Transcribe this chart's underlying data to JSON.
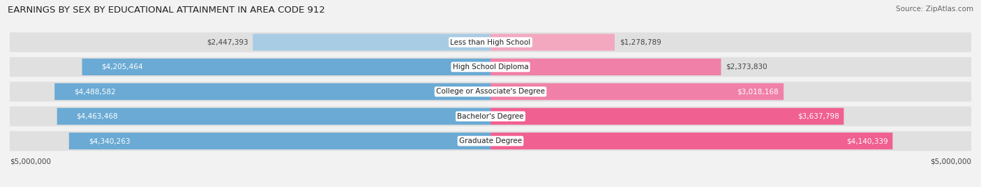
{
  "title": "EARNINGS BY SEX BY EDUCATIONAL ATTAINMENT IN AREA CODE 912",
  "source": "Source: ZipAtlas.com",
  "categories": [
    "Less than High School",
    "High School Diploma",
    "College or Associate's Degree",
    "Bachelor's Degree",
    "Graduate Degree"
  ],
  "male_values": [
    2447393,
    4205464,
    4488582,
    4463468,
    4340263
  ],
  "female_values": [
    1278789,
    2373830,
    3018168,
    3637798,
    4140339
  ],
  "male_labels": [
    "$2,447,393",
    "$4,205,464",
    "$4,488,582",
    "$4,463,468",
    "$4,340,263"
  ],
  "female_labels": [
    "$1,278,789",
    "$2,373,830",
    "$3,018,168",
    "$3,637,798",
    "$4,140,339"
  ],
  "male_color_dark": "#6aaad4",
  "male_color_light": "#a8cce4",
  "female_color_dark": "#f06090",
  "female_color_mid": "#f080a8",
  "female_color_light": "#f4a8c0",
  "background_color": "#f2f2f2",
  "row_bg_color": "#e0e0e0",
  "max_value": 5000000,
  "xlim_label_left": "$5,000,000",
  "xlim_label_right": "$5,000,000",
  "title_fontsize": 9.5,
  "source_fontsize": 7.5,
  "label_fontsize": 7.5,
  "category_fontsize": 7.5,
  "legend_fontsize": 8
}
